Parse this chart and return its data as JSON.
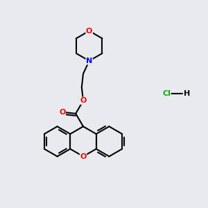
{
  "background_color": "#e8eaf0",
  "atom_colors": {
    "O": "#ff0000",
    "N": "#0000ff",
    "Cl": "#00aa00",
    "C": "#000000",
    "H": "#000000"
  },
  "bond_color": "#000000",
  "bond_width": 1.5,
  "font_size_atom": 8,
  "figsize": [
    3.0,
    3.0
  ],
  "dpi": 100,
  "xlim": [
    0,
    10
  ],
  "ylim": [
    0,
    10
  ]
}
